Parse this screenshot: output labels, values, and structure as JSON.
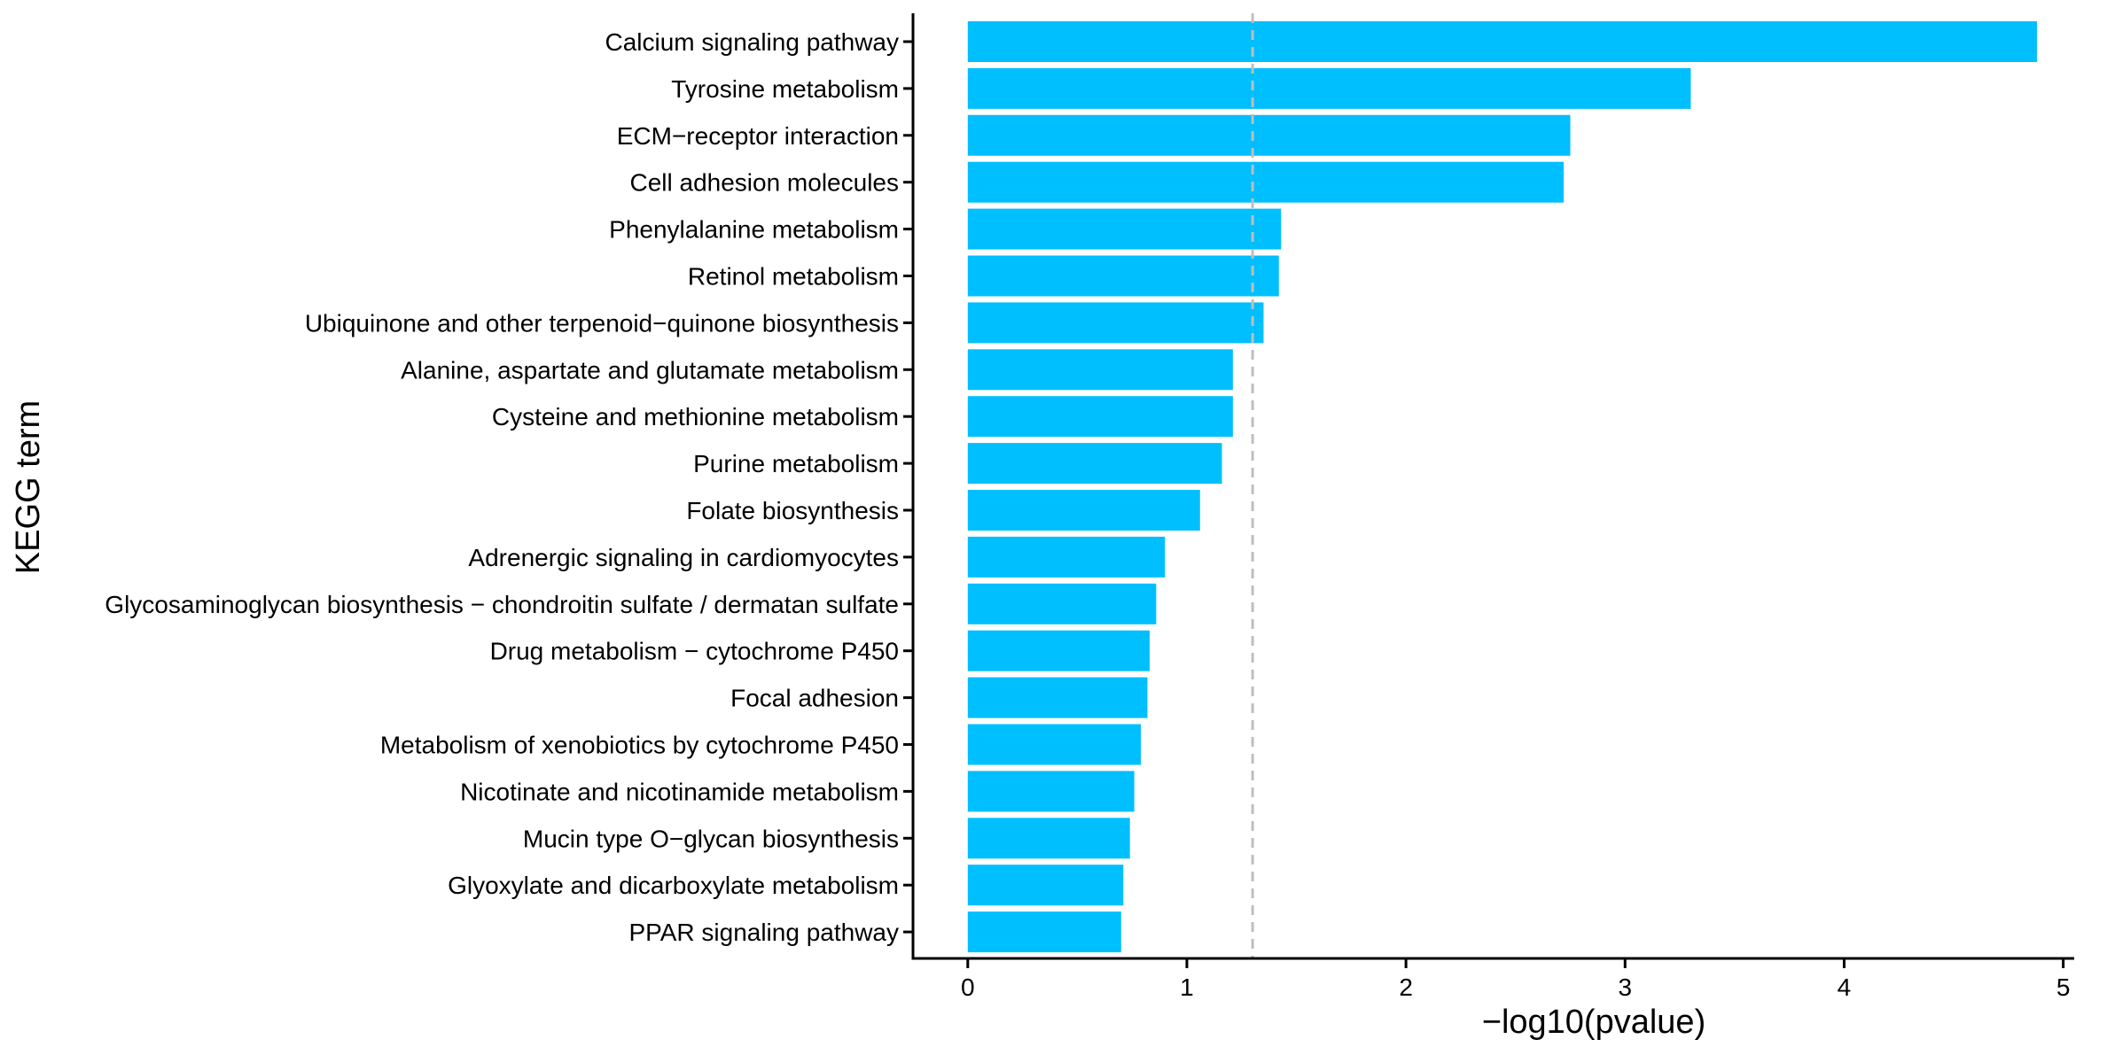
{
  "chart_data": {
    "type": "bar",
    "orientation": "horizontal",
    "xlabel": "−log10(pvalue)",
    "ylabel": "KEGG term",
    "xlim": [
      -0.25,
      5.05
    ],
    "xticks": [
      0,
      1,
      2,
      3,
      4,
      5
    ],
    "grid": false,
    "legend": "none",
    "bar_color": "#00BFFF",
    "reference_line": {
      "x": 1.3,
      "style": "dashed",
      "color": "#BEBEBE"
    },
    "categories": [
      "Calcium signaling pathway",
      "Tyrosine metabolism",
      "ECM−receptor interaction",
      "Cell adhesion molecules",
      "Phenylalanine metabolism",
      "Retinol metabolism",
      "Ubiquinone and other terpenoid−quinone biosynthesis",
      "Alanine, aspartate and glutamate metabolism",
      "Cysteine and methionine metabolism",
      "Purine metabolism",
      "Folate biosynthesis",
      "Adrenergic signaling in cardiomyocytes",
      "Glycosaminoglycan biosynthesis − chondroitin sulfate / dermatan sulfate",
      "Drug metabolism − cytochrome P450",
      "Focal adhesion",
      "Metabolism of xenobiotics by cytochrome P450",
      "Nicotinate and nicotinamide metabolism",
      "Mucin type O−glycan biosynthesis",
      "Glyoxylate and dicarboxylate metabolism",
      "PPAR signaling pathway"
    ],
    "values": [
      4.88,
      3.3,
      2.75,
      2.72,
      1.43,
      1.42,
      1.35,
      1.21,
      1.21,
      1.16,
      1.06,
      0.9,
      0.86,
      0.83,
      0.82,
      0.79,
      0.76,
      0.74,
      0.71,
      0.7
    ]
  }
}
